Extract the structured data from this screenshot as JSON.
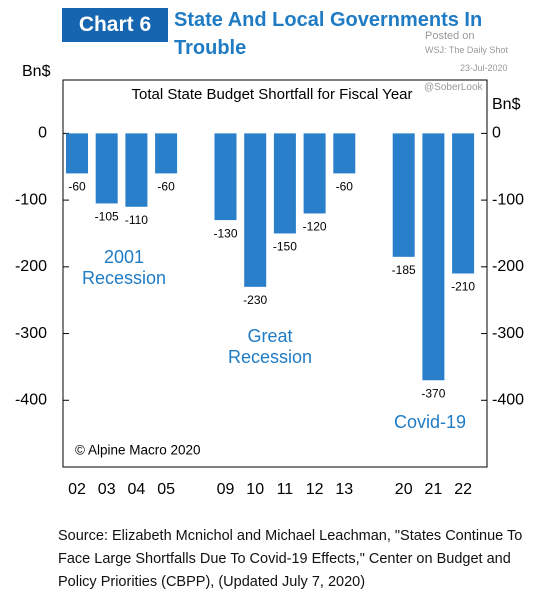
{
  "header": {
    "badge": "Chart 6",
    "title": "State And Local Governments In Trouble"
  },
  "watermark": [
    "Posted on",
    "WSJ: The Daily Shot",
    "23-Jul-2020",
    "@SoberLook"
  ],
  "chart_data": {
    "type": "bar",
    "subtitle": "Total State Budget Shortfall  for Fiscal Year",
    "y_label": "Bn$",
    "y2_label": "Bn$",
    "categories": [
      "02",
      "03",
      "04",
      "05",
      null,
      "09",
      "10",
      "11",
      "12",
      "13",
      null,
      "20",
      "21",
      "22"
    ],
    "values": [
      -60,
      -105,
      -110,
      -60,
      null,
      -130,
      -230,
      -150,
      -120,
      -60,
      null,
      -185,
      -370,
      -210
    ],
    "color": "#2a7fcb",
    "ylim": [
      -500,
      80
    ],
    "yticks": [
      0,
      -100,
      -200,
      -300,
      -400
    ],
    "y2lim": [
      -500,
      80
    ],
    "y2ticks": [
      0,
      -100,
      -200,
      -300,
      -400
    ],
    "annotations": [
      [
        "2001",
        "Recession"
      ],
      [
        "Great",
        "Recession"
      ],
      [
        "Covid-19"
      ]
    ],
    "copyright": "© Alpine Macro 2020"
  },
  "source": "Source: Elizabeth Mcnichol and Michael Leachman, \"States Continue To Face Large Shortfalls Due To Covid-19 Effects,\" Center on Budget and Policy Priorities (CBPP), (Updated July 7, 2020)"
}
